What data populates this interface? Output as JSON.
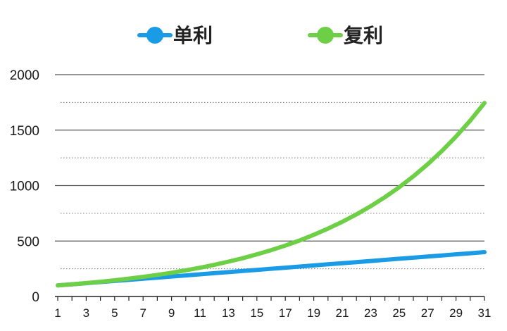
{
  "chart_data": {
    "type": "line",
    "title": "",
    "xlabel": "",
    "ylabel": "",
    "x": [
      1,
      2,
      3,
      4,
      5,
      6,
      7,
      8,
      9,
      10,
      11,
      12,
      13,
      14,
      15,
      16,
      17,
      18,
      19,
      20,
      21,
      22,
      23,
      24,
      25,
      26,
      27,
      28,
      29,
      30,
      31
    ],
    "x_tick_labels": [
      "1",
      "3",
      "5",
      "7",
      "9",
      "11",
      "13",
      "15",
      "17",
      "19",
      "21",
      "23",
      "25",
      "27",
      "29",
      "31"
    ],
    "y_tick_labels": [
      "0",
      "500",
      "1000",
      "1500",
      "2000"
    ],
    "ylim": [
      0,
      2000
    ],
    "grid": "solid major lines at 0/500/1000/1500/2000, dotted minor lines at 250/750/1250/1750",
    "legend_position": "top-center",
    "series": [
      {
        "name": "单利",
        "color": "#1a9be6",
        "values": [
          100,
          110,
          120,
          130,
          140,
          150,
          160,
          170,
          180,
          190,
          200,
          210,
          220,
          230,
          240,
          250,
          260,
          270,
          280,
          290,
          300,
          310,
          320,
          330,
          340,
          350,
          360,
          370,
          380,
          390,
          400
        ]
      },
      {
        "name": "复利",
        "color": "#6ccf46",
        "values": [
          100,
          110,
          121,
          133,
          146,
          161,
          177,
          195,
          214,
          236,
          259,
          285,
          314,
          345,
          380,
          418,
          459,
          505,
          556,
          612,
          673,
          740,
          814,
          895,
          985,
          1083,
          1192,
          1311,
          1442,
          1586,
          1745
        ]
      }
    ]
  }
}
